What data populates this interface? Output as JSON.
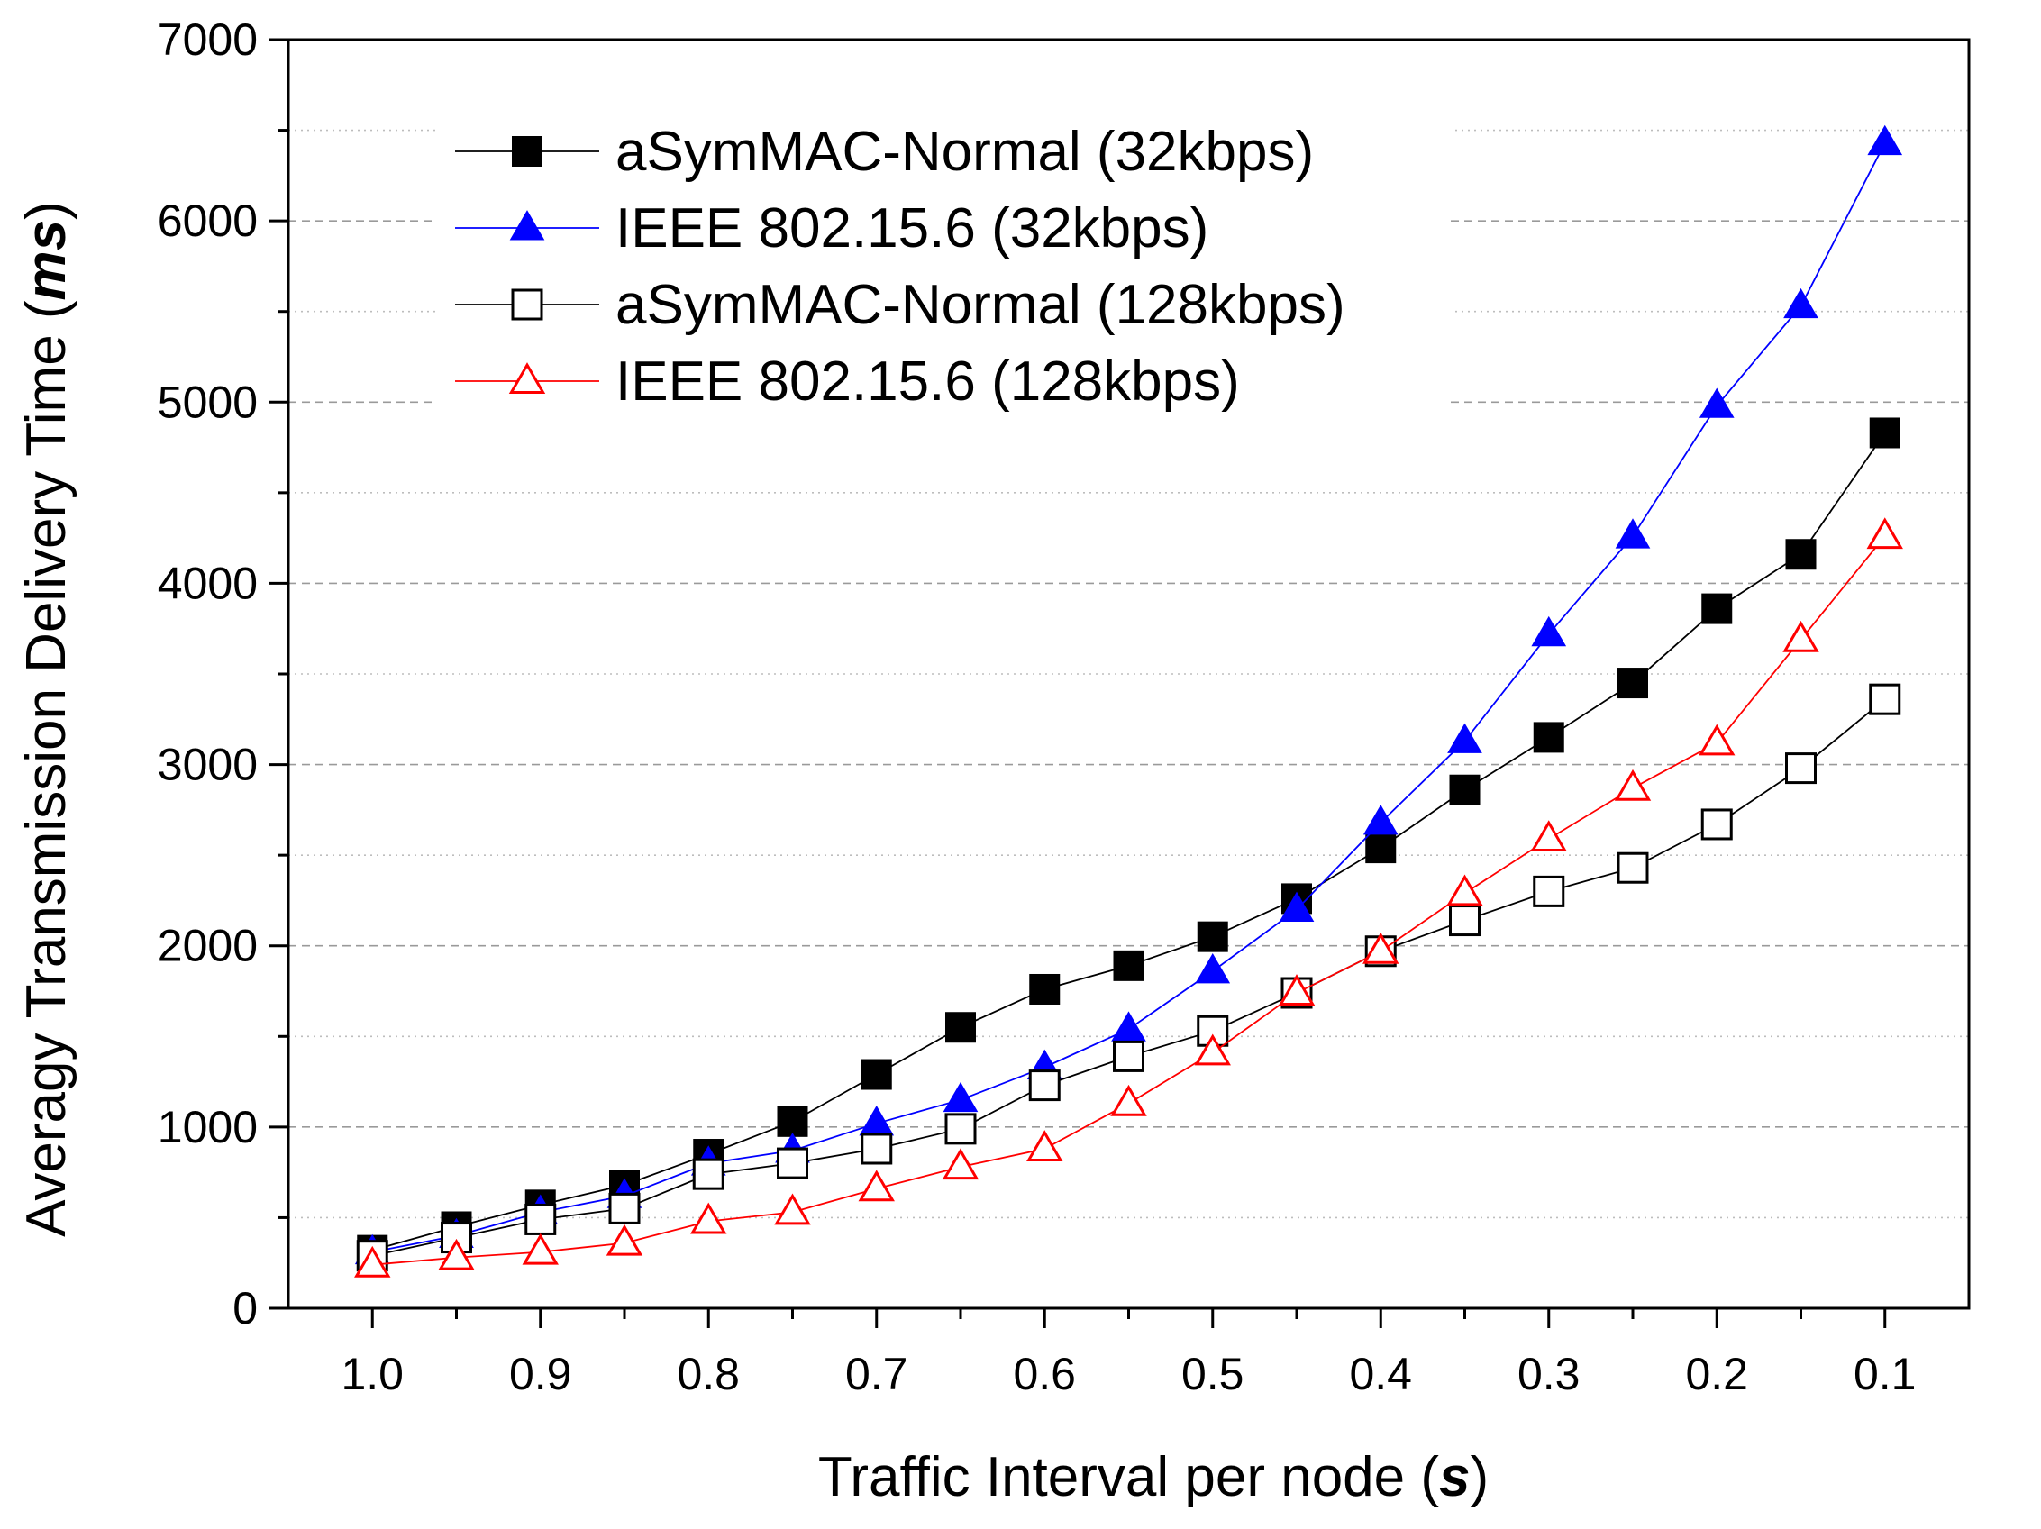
{
  "chart_data": {
    "type": "line",
    "title": "",
    "xlabel": "Traffic Interval per node",
    "xlabel_unit": "s",
    "ylabel": "Averagy Transmission Delivery Time",
    "ylabel_unit": "ms",
    "x_reversed": true,
    "xlim": [
      1.05,
      0.05
    ],
    "ylim": [
      0,
      7000
    ],
    "x_ticks": [
      1.0,
      0.9,
      0.8,
      0.7,
      0.6,
      0.5,
      0.4,
      0.3,
      0.2,
      0.1
    ],
    "x_tick_labels": [
      "1.0",
      "0.9",
      "0.8",
      "0.7",
      "0.6",
      "0.5",
      "0.4",
      "0.3",
      "0.2",
      "0.1"
    ],
    "y_ticks": [
      0,
      1000,
      2000,
      3000,
      4000,
      5000,
      6000,
      7000
    ],
    "y_tick_labels": [
      "0",
      "1000",
      "2000",
      "3000",
      "4000",
      "5000",
      "6000",
      "7000"
    ],
    "grid": true,
    "legend_position": "top-left",
    "x": [
      1.0,
      0.95,
      0.9,
      0.85,
      0.8,
      0.75,
      0.7,
      0.65,
      0.6,
      0.55,
      0.5,
      0.45,
      0.4,
      0.35,
      0.3,
      0.25,
      0.2,
      0.15,
      0.1
    ],
    "series": [
      {
        "name": "aSymMAC-Normal (32kbps)",
        "color": "#000000",
        "marker": "square",
        "filled": true,
        "values": [
          320,
          450,
          570,
          680,
          850,
          1030,
          1290,
          1550,
          1760,
          1890,
          2050,
          2260,
          2540,
          2860,
          3150,
          3450,
          3860,
          4160,
          4830
        ]
      },
      {
        "name": "IEEE 802.15.6 (32kbps)",
        "color": "#0000ff",
        "marker": "triangle",
        "filled": true,
        "values": [
          310,
          400,
          530,
          620,
          800,
          870,
          1020,
          1150,
          1330,
          1540,
          1860,
          2200,
          2680,
          3130,
          3720,
          4260,
          4980,
          5530,
          6430
        ]
      },
      {
        "name": "aSymMAC-Normal (128kbps)",
        "color": "#000000",
        "marker": "square",
        "filled": false,
        "values": [
          290,
          390,
          490,
          550,
          740,
          800,
          880,
          990,
          1230,
          1390,
          1530,
          1740,
          1970,
          2140,
          2300,
          2430,
          2670,
          2980,
          3360
        ]
      },
      {
        "name": "IEEE 802.15.6 (128kbps)",
        "color": "#ff0000",
        "marker": "triangle",
        "filled": false,
        "values": [
          240,
          280,
          310,
          360,
          480,
          530,
          660,
          780,
          880,
          1130,
          1410,
          1740,
          1970,
          2290,
          2590,
          2870,
          3120,
          3690,
          4260
        ]
      }
    ]
  }
}
